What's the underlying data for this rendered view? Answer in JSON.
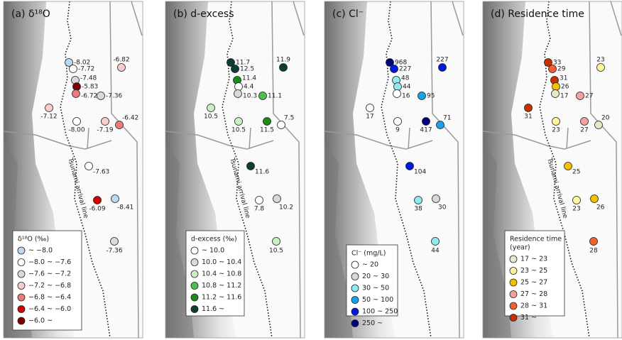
{
  "panels": [
    {
      "title": "(a) δ¹⁸O",
      "tsunami_label": "Tsunami arrival line",
      "legend": {
        "title": [
          "δ¹⁸O (‰)"
        ],
        "items": [
          {
            "label": "~ −8.0",
            "color": "#bcd8f0"
          },
          {
            "label": "−8.0 ~ −7.6",
            "color": "#ffffff"
          },
          {
            "label": "−7.6 ~ −7.2",
            "color": "#d9d9d9"
          },
          {
            "label": "−7.2 ~ −6.8",
            "color": "#f6cccc"
          },
          {
            "label": "−6.8 ~ −6.4",
            "color": "#ee7b7b"
          },
          {
            "label": "−6.4 ~ −6.0",
            "color": "#d40000"
          },
          {
            "label": "−6.0 ~",
            "color": "#7b0000"
          }
        ]
      },
      "points": [
        {
          "label": "-8.02",
          "color": "#bcd8f0"
        },
        {
          "label": "-7.72",
          "color": "#ffffff"
        },
        {
          "label": "-7.48",
          "color": "#d9d9d9"
        },
        {
          "label": "-5.83",
          "color": "#7b0000"
        },
        {
          "label": "-6.72",
          "color": "#ee7b7b"
        },
        {
          "label": "-7.36",
          "color": "#d9d9d9"
        },
        {
          "label": "-6.82",
          "color": "#f6cccc"
        },
        {
          "label": "-7.12",
          "color": "#f6cccc"
        },
        {
          "label": "-8.00",
          "color": "#ffffff"
        },
        {
          "label": "-7.19",
          "color": "#f6cccc"
        },
        {
          "label": "-6.42",
          "color": "#ee7b7b"
        },
        {
          "label": "-7.63",
          "color": "#ffffff"
        },
        {
          "label": "-6.09",
          "color": "#d40000"
        },
        {
          "label": "-8.41",
          "color": "#bcd8f0"
        },
        {
          "label": "-7.36",
          "color": "#d9d9d9"
        }
      ]
    },
    {
      "title": "(b) d-excess",
      "tsunami_label": "Tsunami arrival line",
      "legend": {
        "title": [
          "d-excess (‰)"
        ],
        "items": [
          {
            "label": "~ 10.0",
            "color": "#ffffff"
          },
          {
            "label": "10.0 ~ 10.4",
            "color": "#d9d9d9"
          },
          {
            "label": "10.4 ~ 10.8",
            "color": "#c8f0c0"
          },
          {
            "label": "10.8 ~ 11.2",
            "color": "#4cc04c"
          },
          {
            "label": "11.2 ~ 11.6",
            "color": "#1a8a1a"
          },
          {
            "label": "11.6 ~",
            "color": "#0d3d35"
          }
        ]
      },
      "points": [
        {
          "label": "11.7",
          "color": "#0d3d35"
        },
        {
          "label": "12.5",
          "color": "#0d3d35"
        },
        {
          "label": "11.4",
          "color": "#1a8a1a"
        },
        {
          "label": "4.4",
          "color": "#ffffff"
        },
        {
          "label": "10.3",
          "color": "#d9d9d9"
        },
        {
          "label": "11.1",
          "color": "#4cc04c"
        },
        {
          "label": "11.9",
          "color": "#0d3d35"
        },
        {
          "label": "10.5",
          "color": "#c8f0c0"
        },
        {
          "label": "10.5",
          "color": "#c8f0c0"
        },
        {
          "label": "11.5",
          "color": "#1a8a1a"
        },
        {
          "label": "7.5",
          "color": "#ffffff"
        },
        {
          "label": "11.6",
          "color": "#0d3d35"
        },
        {
          "label": "7.8",
          "color": "#ffffff"
        },
        {
          "label": "10.2",
          "color": "#d9d9d9"
        },
        {
          "label": "10.5",
          "color": "#c8f0c0"
        }
      ]
    },
    {
      "title": "(c) Cl⁻",
      "legend": {
        "title": [
          "Cl⁻ (mg/L)"
        ],
        "items": [
          {
            "label": "~ 20",
            "color": "#ffffff"
          },
          {
            "label": "20 ~ 30",
            "color": "#d9d9d9"
          },
          {
            "label": "30 ~ 50",
            "color": "#90e8f0"
          },
          {
            "label": "50 ~ 100",
            "color": "#1aa0e8"
          },
          {
            "label": "100 ~ 250",
            "color": "#0018e0"
          },
          {
            "label": "250 ~",
            "color": "#000080"
          }
        ]
      },
      "points": [
        {
          "label": "968",
          "color": "#000080"
        },
        {
          "label": "227",
          "color": "#0018e0"
        },
        {
          "label": "48",
          "color": "#90e8f0"
        },
        {
          "label": "44",
          "color": "#90e8f0"
        },
        {
          "label": "16",
          "color": "#ffffff"
        },
        {
          "label": "95",
          "color": "#1aa0e8"
        },
        {
          "label": "227",
          "color": "#0018e0"
        },
        {
          "label": "17",
          "color": "#ffffff"
        },
        {
          "label": "9",
          "color": "#ffffff"
        },
        {
          "label": "417",
          "color": "#000080"
        },
        {
          "label": "71",
          "color": "#1aa0e8"
        },
        {
          "label": "104",
          "color": "#0018e0"
        },
        {
          "label": "38",
          "color": "#90e8f0"
        },
        {
          "label": "30",
          "color": "#d9d9d9"
        },
        {
          "label": "44",
          "color": "#90e8f0"
        }
      ]
    },
    {
      "title": "(d) Residence time",
      "tsunami_label": "Tsunami arrival line",
      "legend": {
        "title": [
          "Residence time",
          "(year)"
        ],
        "items": [
          {
            "label": "17 ~ 23",
            "color": "#e2ecc8"
          },
          {
            "label": "23 ~ 25",
            "color": "#fff7a0"
          },
          {
            "label": "25 ~ 27",
            "color": "#f4c000"
          },
          {
            "label": "27 ~ 28",
            "color": "#f2a0a0"
          },
          {
            "label": "28 ~ 31",
            "color": "#f06030"
          },
          {
            "label": "31 ~",
            "color": "#c83000"
          }
        ]
      },
      "points": [
        {
          "label": "33",
          "color": "#c83000"
        },
        {
          "label": "29",
          "color": "#f06030"
        },
        {
          "label": "31",
          "color": "#c83000"
        },
        {
          "label": "26",
          "color": "#f4c000"
        },
        {
          "label": "17",
          "color": "#e2ecc8"
        },
        {
          "label": "27",
          "color": "#f2a0a0"
        },
        {
          "label": "23",
          "color": "#fff7a0"
        },
        {
          "label": "31",
          "color": "#c83000"
        },
        {
          "label": "23",
          "color": "#fff7a0"
        },
        {
          "label": "27",
          "color": "#f2a0a0"
        },
        {
          "label": "20",
          "color": "#e2ecc8"
        },
        {
          "label": "25",
          "color": "#f4c000"
        },
        {
          "label": "23",
          "color": "#fff7a0"
        },
        {
          "label": "26",
          "color": "#f4c000"
        },
        {
          "label": "28",
          "color": "#f06030"
        }
      ]
    }
  ]
}
